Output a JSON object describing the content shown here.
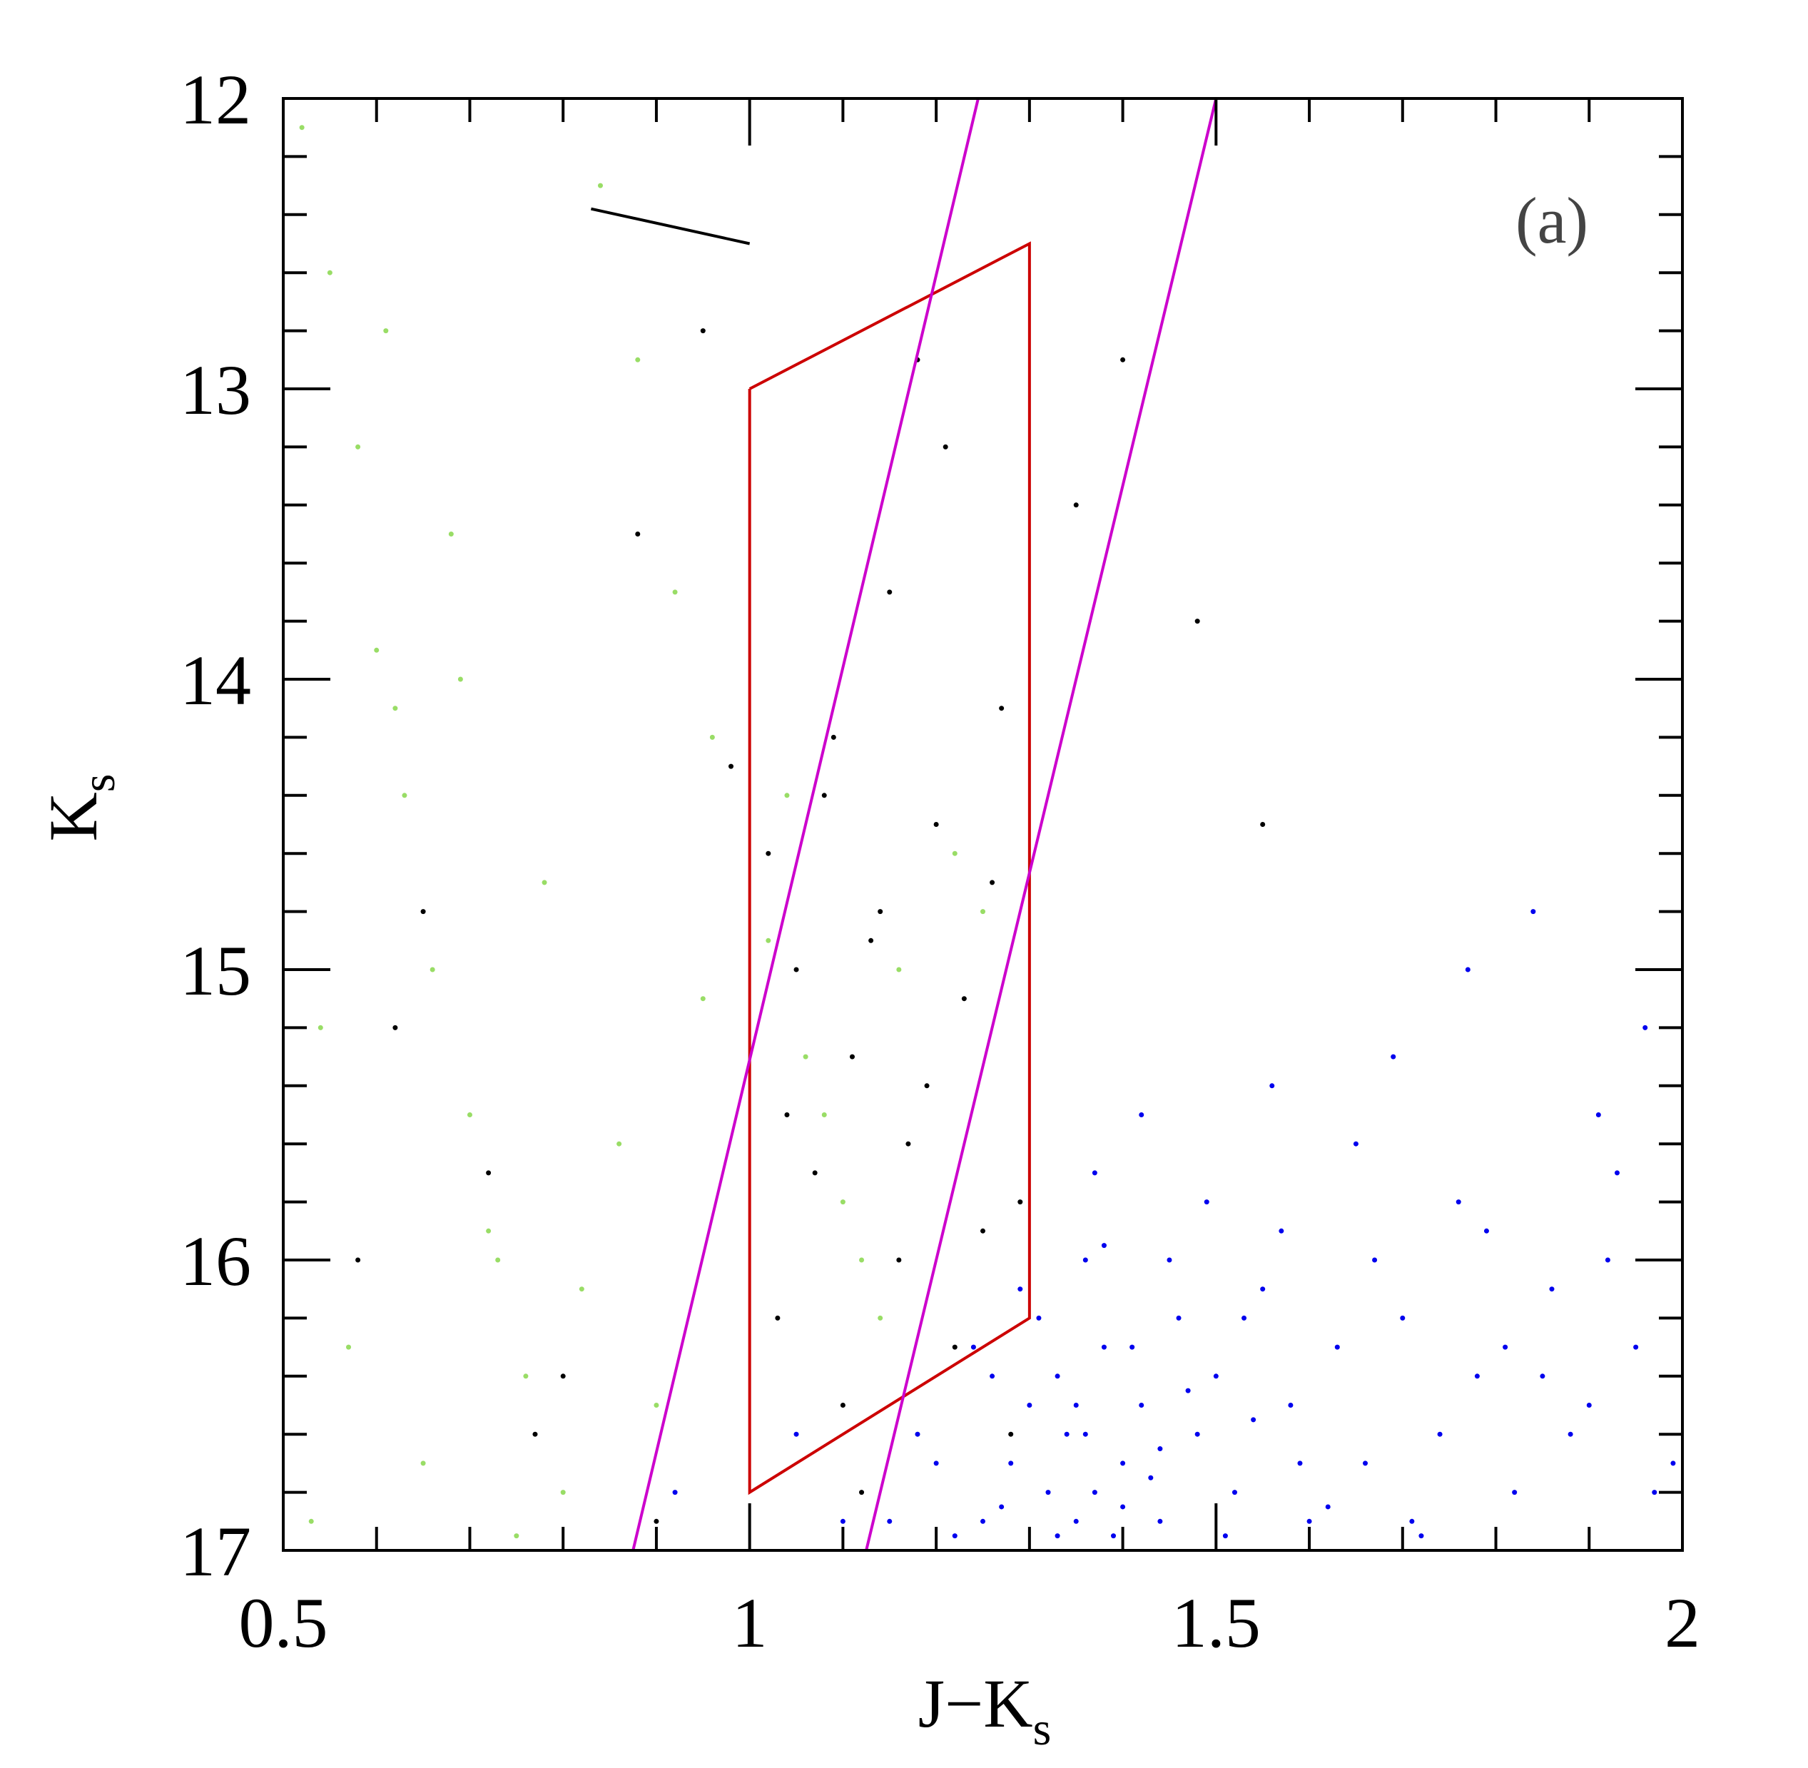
{
  "chart_data": {
    "type": "scatter",
    "xlabel": "J−K",
    "xlabel_sub": "s",
    "ylabel": "K",
    "ylabel_sub": "s",
    "annotation": "(a)",
    "xlim": [
      0.5,
      2
    ],
    "xticks": [
      0.5,
      1,
      1.5,
      2
    ],
    "xminorticks": [
      0.6,
      0.7,
      0.8,
      0.9,
      1.1,
      1.2,
      1.3,
      1.4,
      1.6,
      1.7,
      1.8,
      1.9
    ],
    "ylim": [
      12,
      17
    ],
    "yinverted": true,
    "yticks": [
      12,
      13,
      14,
      15,
      16,
      17
    ],
    "yminorticks": [
      12.2,
      12.4,
      12.6,
      12.8,
      13.2,
      13.4,
      13.6,
      13.8,
      14.2,
      14.4,
      14.6,
      14.8,
      15.2,
      15.4,
      15.6,
      15.8,
      16.2,
      16.4,
      16.6,
      16.8
    ],
    "series": [
      {
        "color": "#99dd66",
        "x": [
          0.52,
          0.55,
          0.58,
          0.6,
          0.63,
          0.66,
          0.7,
          0.73,
          0.76,
          0.8,
          0.84,
          0.88,
          0.92,
          0.96,
          1.02,
          1.06,
          1.1,
          1.14,
          1.18,
          1.22,
          0.54,
          0.57,
          0.62,
          0.65,
          0.68,
          0.72,
          0.78,
          0.82,
          0.86,
          0.9,
          0.95,
          1.04,
          1.08,
          1.12,
          1.16,
          1.25,
          0.53,
          0.61,
          0.69,
          0.75
        ],
        "y": [
          12.1,
          12.6,
          13.2,
          13.9,
          14.4,
          15.0,
          15.5,
          16.0,
          16.4,
          16.8,
          12.3,
          12.9,
          13.7,
          14.2,
          14.9,
          15.3,
          15.8,
          16.2,
          16.6,
          14.6,
          15.2,
          16.3,
          14.1,
          16.7,
          13.5,
          15.9,
          14.7,
          16.1,
          15.6,
          16.5,
          15.1,
          14.4,
          15.5,
          16.0,
          15.0,
          14.8,
          16.9,
          12.8,
          14.0,
          16.95
        ]
      },
      {
        "color": "#000000",
        "x": [
          1.02,
          1.05,
          1.08,
          1.11,
          1.14,
          1.17,
          1.2,
          1.23,
          1.26,
          1.29,
          1.03,
          1.07,
          1.1,
          1.13,
          1.16,
          1.19,
          1.22,
          1.25,
          1.28,
          1.04,
          1.09,
          1.15,
          1.21,
          1.27,
          0.58,
          0.65,
          0.72,
          0.8,
          0.88,
          0.95,
          0.98,
          1.35,
          1.4,
          1.48,
          1.55,
          0.9,
          0.77,
          0.62,
          1.12,
          1.18
        ],
        "y": [
          14.6,
          15.0,
          14.4,
          15.3,
          14.8,
          15.6,
          14.5,
          15.1,
          14.7,
          15.8,
          16.2,
          15.7,
          16.5,
          14.9,
          16.0,
          15.4,
          16.3,
          15.9,
          16.6,
          15.5,
          14.2,
          13.7,
          13.2,
          14.1,
          16.0,
          14.8,
          15.7,
          16.4,
          13.5,
          12.8,
          14.3,
          13.4,
          12.9,
          13.8,
          14.5,
          16.9,
          16.6,
          15.2,
          16.8,
          12.9
        ]
      },
      {
        "color": "#0000ee",
        "x": [
          1.25,
          1.28,
          1.3,
          1.32,
          1.33,
          1.35,
          1.36,
          1.37,
          1.38,
          1.4,
          1.42,
          1.44,
          1.46,
          1.48,
          1.5,
          1.52,
          1.55,
          1.58,
          1.6,
          1.63,
          1.66,
          1.7,
          1.74,
          1.78,
          1.82,
          1.86,
          1.9,
          1.95,
          1.99,
          1.22,
          1.27,
          1.31,
          1.34,
          1.36,
          1.39,
          1.41,
          1.43,
          1.45,
          1.47,
          1.51,
          1.54,
          1.57,
          1.62,
          1.67,
          1.72,
          1.76,
          1.81,
          1.88,
          1.93,
          1.2,
          1.26,
          1.29,
          1.33,
          1.35,
          1.38,
          1.4,
          1.44,
          1.49,
          1.53,
          1.59,
          1.65,
          1.71,
          1.79,
          1.85,
          1.92,
          1.97,
          1.15,
          1.18,
          1.24,
          1.37,
          1.42,
          1.56,
          1.69,
          1.77,
          1.84,
          1.91,
          1.96,
          0.92,
          1.05,
          1.1
        ],
        "y": [
          16.9,
          16.7,
          16.5,
          16.8,
          16.4,
          16.9,
          16.6,
          16.8,
          16.3,
          16.7,
          16.5,
          16.9,
          16.2,
          16.6,
          16.4,
          16.8,
          16.1,
          16.5,
          16.9,
          16.3,
          16.7,
          16.2,
          16.6,
          16.4,
          16.8,
          16.1,
          16.5,
          16.3,
          16.7,
          16.95,
          16.85,
          16.2,
          16.6,
          16.0,
          16.95,
          16.3,
          16.75,
          16.0,
          16.45,
          16.95,
          16.55,
          15.9,
          16.85,
          16.0,
          16.95,
          15.8,
          16.3,
          16.6,
          15.7,
          16.7,
          16.4,
          16.1,
          16.95,
          16.5,
          15.95,
          16.85,
          16.65,
          15.8,
          16.2,
          16.7,
          15.6,
          16.9,
          15.9,
          16.4,
          16.0,
          16.8,
          16.9,
          16.6,
          16.3,
          15.7,
          15.5,
          15.4,
          15.3,
          15.0,
          14.8,
          15.5,
          15.2,
          16.8,
          16.6,
          16.9
        ]
      }
    ],
    "lines": [
      {
        "color": "#000000",
        "x": [
          0.83,
          1.0
        ],
        "y": [
          12.38,
          12.5
        ]
      },
      {
        "color": "#cc0000",
        "x": [
          1.0,
          1.3,
          1.3,
          1.0,
          1.0
        ],
        "y": [
          13.0,
          12.5,
          16.2,
          16.8,
          13.0
        ]
      },
      {
        "color": "#cc00cc",
        "x": [
          0.875,
          1.245
        ],
        "y": [
          17,
          12
        ]
      },
      {
        "color": "#cc00cc",
        "x": [
          1.125,
          1.5
        ],
        "y": [
          17,
          12
        ]
      }
    ]
  }
}
